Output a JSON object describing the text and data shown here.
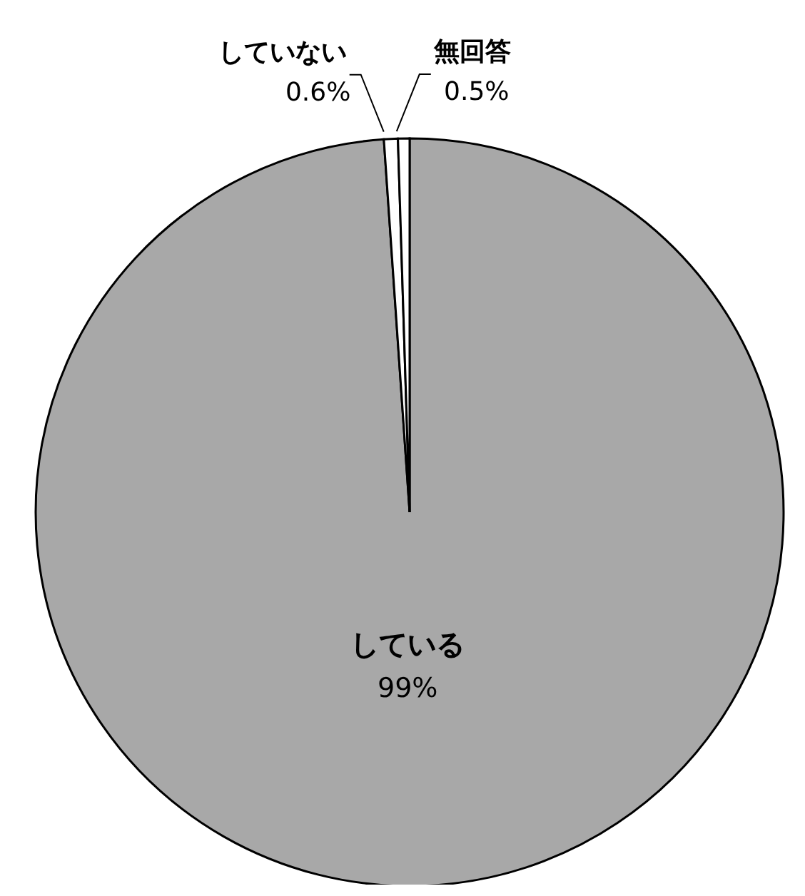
{
  "chart_data": {
    "type": "pie",
    "categories": [
      "している",
      "していない",
      "無回答"
    ],
    "values": [
      99,
      0.6,
      0.5
    ],
    "value_labels": [
      "99%",
      "0.6%",
      "0.5%"
    ],
    "colors": [
      "#a8a8a8",
      "#ffffff",
      "#ffffff"
    ],
    "legend": false
  }
}
